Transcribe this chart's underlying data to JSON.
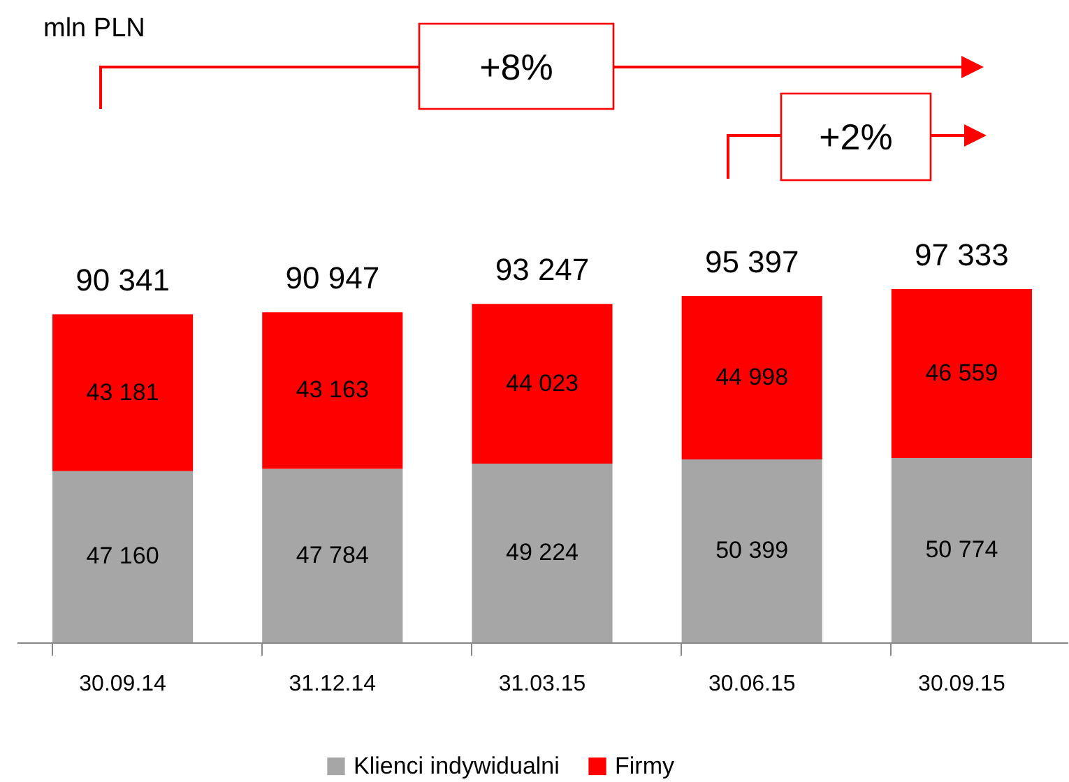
{
  "chart_data": {
    "type": "bar",
    "stacked": true,
    "categories": [
      "30.09.14",
      "31.12.14",
      "31.03.15",
      "30.06.15",
      "30.09.15"
    ],
    "series": [
      {
        "name": "Klienci indywidualni",
        "color": "#a6a6a6",
        "values": [
          47160,
          47784,
          49224,
          50399,
          50774
        ]
      },
      {
        "name": "Firmy",
        "color": "#ff0000",
        "values": [
          43181,
          43163,
          44023,
          44998,
          46559
        ]
      }
    ],
    "totals": [
      "90 341",
      "90 947",
      "93 247",
      "95 397",
      "97 333"
    ],
    "data_labels": true,
    "tick_labels": "x",
    "grid": false,
    "legend": "bottom",
    "annotations": [
      "mln PLN",
      "+8%",
      "+2%"
    ]
  }
}
